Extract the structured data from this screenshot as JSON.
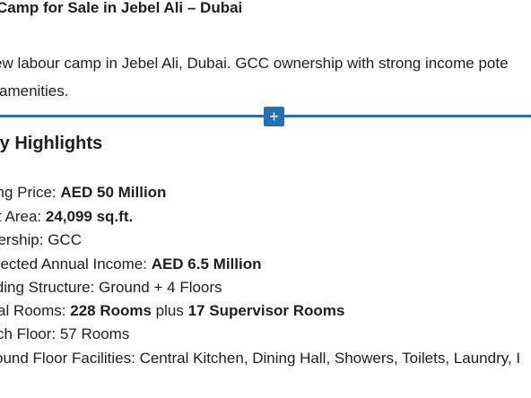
{
  "post": {
    "title": "Camp for Sale in Jebel Ali – Dubai",
    "intro_line1": "ew labour camp in Jebel Ali, Dubai. GCC ownership with strong income pote",
    "intro_line2": "amenities."
  },
  "inserter": {
    "icon": "plus-icon",
    "glyph": "+",
    "color": "#2271b1"
  },
  "highlights": {
    "heading": "ty Highlights",
    "items": [
      {
        "label": "ling Price: ",
        "value": "AED 50 Million"
      },
      {
        "label": "t Area: ",
        "value": "24,099 sq.ft."
      },
      {
        "label": "nership: GCC"
      },
      {
        "label": "pected Annual Income: ",
        "value": "AED 6.5 Million"
      },
      {
        "label": "lding Structure: Ground + 4 Floors"
      },
      {
        "label": "al Rooms: ",
        "value": "228 Rooms",
        "mid": " plus ",
        "value2": "17 Supervisor Rooms"
      },
      {
        "label": "ch Floor: 57 Rooms"
      },
      {
        "label": "ound Floor Facilities: Central Kitchen, Dining Hall, Showers, Toilets, Laundry, I"
      }
    ]
  }
}
